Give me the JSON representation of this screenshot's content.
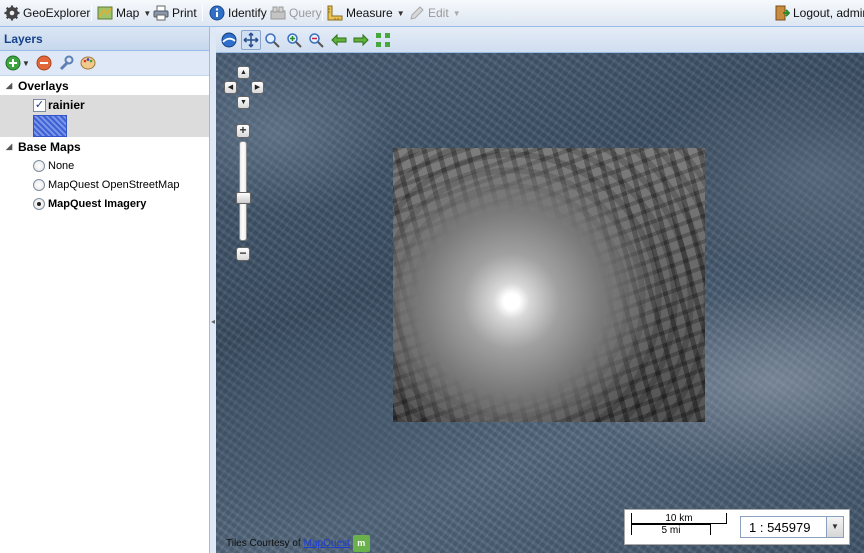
{
  "toolbar": {
    "app_name": "GeoExplorer",
    "map_label": "Map",
    "print_label": "Print",
    "identify_label": "Identify",
    "query_label": "Query",
    "measure_label": "Measure",
    "edit_label": "Edit",
    "logout_label": "Logout, admin"
  },
  "layers_panel": {
    "title": "Layers",
    "overlays_label": "Overlays",
    "overlay_layer": {
      "name": "rainier",
      "checked": true
    },
    "basemaps_label": "Base Maps",
    "basemaps": [
      {
        "label": "None",
        "selected": false
      },
      {
        "label": "MapQuest OpenStreetMap",
        "selected": false
      },
      {
        "label": "MapQuest Imagery",
        "selected": true
      }
    ]
  },
  "map": {
    "scale_top": "10 km",
    "scale_bottom": "5 mi",
    "scale_value": "1 : 545979",
    "attribution_prefix": "Tiles Courtesy of",
    "attribution_link": "MapQuest"
  },
  "icons": {
    "app": "gear-icon",
    "map": "map-icon",
    "print": "printer-icon",
    "identify": "info-icon",
    "query": "query-icon",
    "measure": "ruler-icon",
    "edit": "pencil-icon",
    "logout": "logout-icon"
  }
}
